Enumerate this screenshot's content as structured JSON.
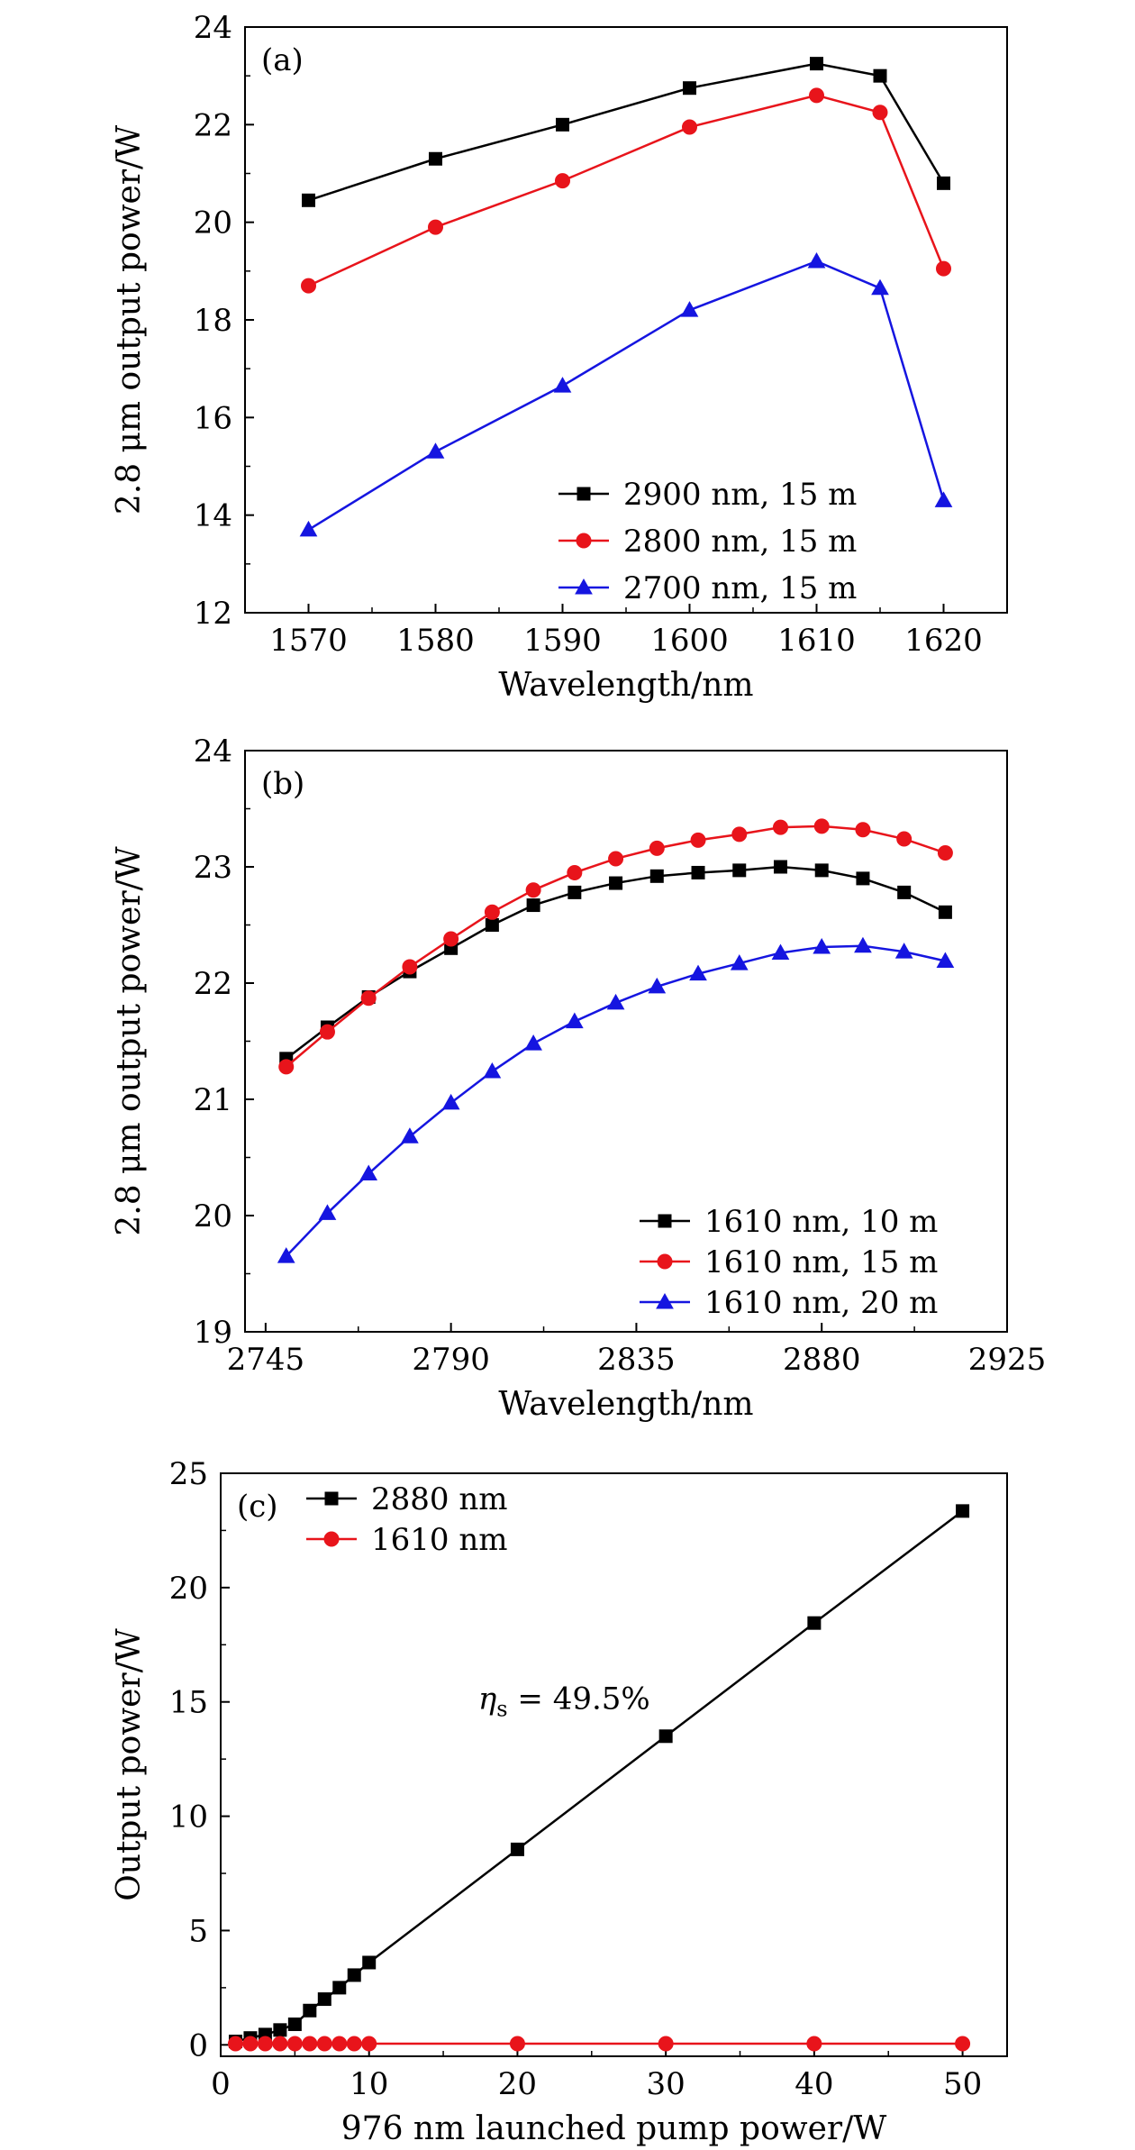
{
  "chart_data": [
    {
      "type": "line",
      "panel_label": "(a)",
      "xlabel": "Wavelength/nm",
      "ylabel": "2.8 μm output power/W",
      "xlim": [
        1565,
        1625
      ],
      "ylim": [
        12,
        24
      ],
      "xticks": [
        1570,
        1580,
        1590,
        1600,
        1610,
        1620
      ],
      "yticks": [
        12,
        14,
        16,
        18,
        20,
        22,
        24
      ],
      "grid": false,
      "legend_position": "bottom-right",
      "series": [
        {
          "name": "2900 nm, 15 m",
          "color": "#000000",
          "marker": "square",
          "x": [
            1570,
            1580,
            1590,
            1600,
            1610,
            1615,
            1620
          ],
          "y": [
            20.45,
            21.3,
            22.0,
            22.75,
            23.25,
            23.0,
            20.8
          ]
        },
        {
          "name": "2800 nm, 15 m",
          "color": "#e8141b",
          "marker": "circle",
          "x": [
            1570,
            1580,
            1590,
            1600,
            1610,
            1615,
            1620
          ],
          "y": [
            18.7,
            19.9,
            20.85,
            21.95,
            22.6,
            22.25,
            19.05
          ]
        },
        {
          "name": "2700 nm, 15 m",
          "color": "#1515e0",
          "marker": "triangle",
          "x": [
            1570,
            1580,
            1590,
            1600,
            1610,
            1615,
            1620
          ],
          "y": [
            13.7,
            15.3,
            16.65,
            18.2,
            19.2,
            18.65,
            14.3
          ]
        }
      ]
    },
    {
      "type": "line",
      "panel_label": "(b)",
      "xlabel": "Wavelength/nm",
      "ylabel": "2.8 μm output power/W",
      "xlim": [
        2740,
        2925
      ],
      "ylim": [
        19,
        24
      ],
      "xticks": [
        2745,
        2790,
        2835,
        2880,
        2925
      ],
      "yticks": [
        19,
        20,
        21,
        22,
        23,
        24
      ],
      "grid": false,
      "legend_position": "bottom-right",
      "series": [
        {
          "name": "1610 nm, 10 m",
          "color": "#000000",
          "marker": "square",
          "x": [
            2750,
            2760,
            2770,
            2780,
            2790,
            2800,
            2810,
            2820,
            2830,
            2840,
            2850,
            2860,
            2870,
            2880,
            2890,
            2900,
            2910
          ],
          "y": [
            21.35,
            21.62,
            21.88,
            22.1,
            22.3,
            22.5,
            22.67,
            22.78,
            22.86,
            22.92,
            22.95,
            22.97,
            23.0,
            22.97,
            22.9,
            22.78,
            22.61
          ]
        },
        {
          "name": "1610 nm, 15 m",
          "color": "#e8141b",
          "marker": "circle",
          "x": [
            2750,
            2760,
            2770,
            2780,
            2790,
            2800,
            2810,
            2820,
            2830,
            2840,
            2850,
            2860,
            2870,
            2880,
            2890,
            2900,
            2910
          ],
          "y": [
            21.28,
            21.58,
            21.87,
            22.14,
            22.38,
            22.61,
            22.8,
            22.95,
            23.07,
            23.16,
            23.23,
            23.28,
            23.34,
            23.35,
            23.32,
            23.24,
            23.12
          ]
        },
        {
          "name": "1610 nm, 20 m",
          "color": "#1515e0",
          "marker": "triangle",
          "x": [
            2750,
            2760,
            2770,
            2780,
            2790,
            2800,
            2810,
            2820,
            2830,
            2840,
            2850,
            2860,
            2870,
            2880,
            2890,
            2900,
            2910
          ],
          "y": [
            19.65,
            20.02,
            20.36,
            20.68,
            20.97,
            21.24,
            21.48,
            21.67,
            21.83,
            21.97,
            22.08,
            22.17,
            22.26,
            22.31,
            22.32,
            22.27,
            22.19
          ]
        }
      ]
    },
    {
      "type": "line",
      "panel_label": "(c)",
      "xlabel": "976 nm launched pump power/W",
      "ylabel": "Output power/W",
      "xlim": [
        0,
        53
      ],
      "ylim": [
        -0.5,
        25
      ],
      "xticks": [
        0,
        10,
        20,
        30,
        40,
        50
      ],
      "yticks": [
        0,
        5,
        10,
        15,
        20,
        25
      ],
      "grid": false,
      "legend_position": "top-left",
      "annotation": {
        "symbol": "η",
        "subscript": "s",
        "text": " = 49.5%",
        "x": 21,
        "y": 14.7
      },
      "series": [
        {
          "name": "2880 nm",
          "color": "#000000",
          "marker": "square",
          "x": [
            1,
            2,
            3,
            4,
            5,
            6,
            7,
            8,
            9,
            10,
            20,
            30,
            40,
            50
          ],
          "y": [
            0.15,
            0.3,
            0.45,
            0.65,
            0.9,
            1.5,
            2.0,
            2.5,
            3.05,
            3.6,
            8.55,
            13.5,
            18.45,
            23.35
          ]
        },
        {
          "name": "1610 nm",
          "color": "#e8141b",
          "marker": "circle",
          "x": [
            1,
            2,
            3,
            4,
            5,
            6,
            7,
            8,
            9,
            10,
            20,
            30,
            40,
            50
          ],
          "y": [
            0.05,
            0.05,
            0.05,
            0.05,
            0.05,
            0.05,
            0.05,
            0.05,
            0.05,
            0.05,
            0.05,
            0.05,
            0.05,
            0.05
          ]
        }
      ]
    }
  ]
}
